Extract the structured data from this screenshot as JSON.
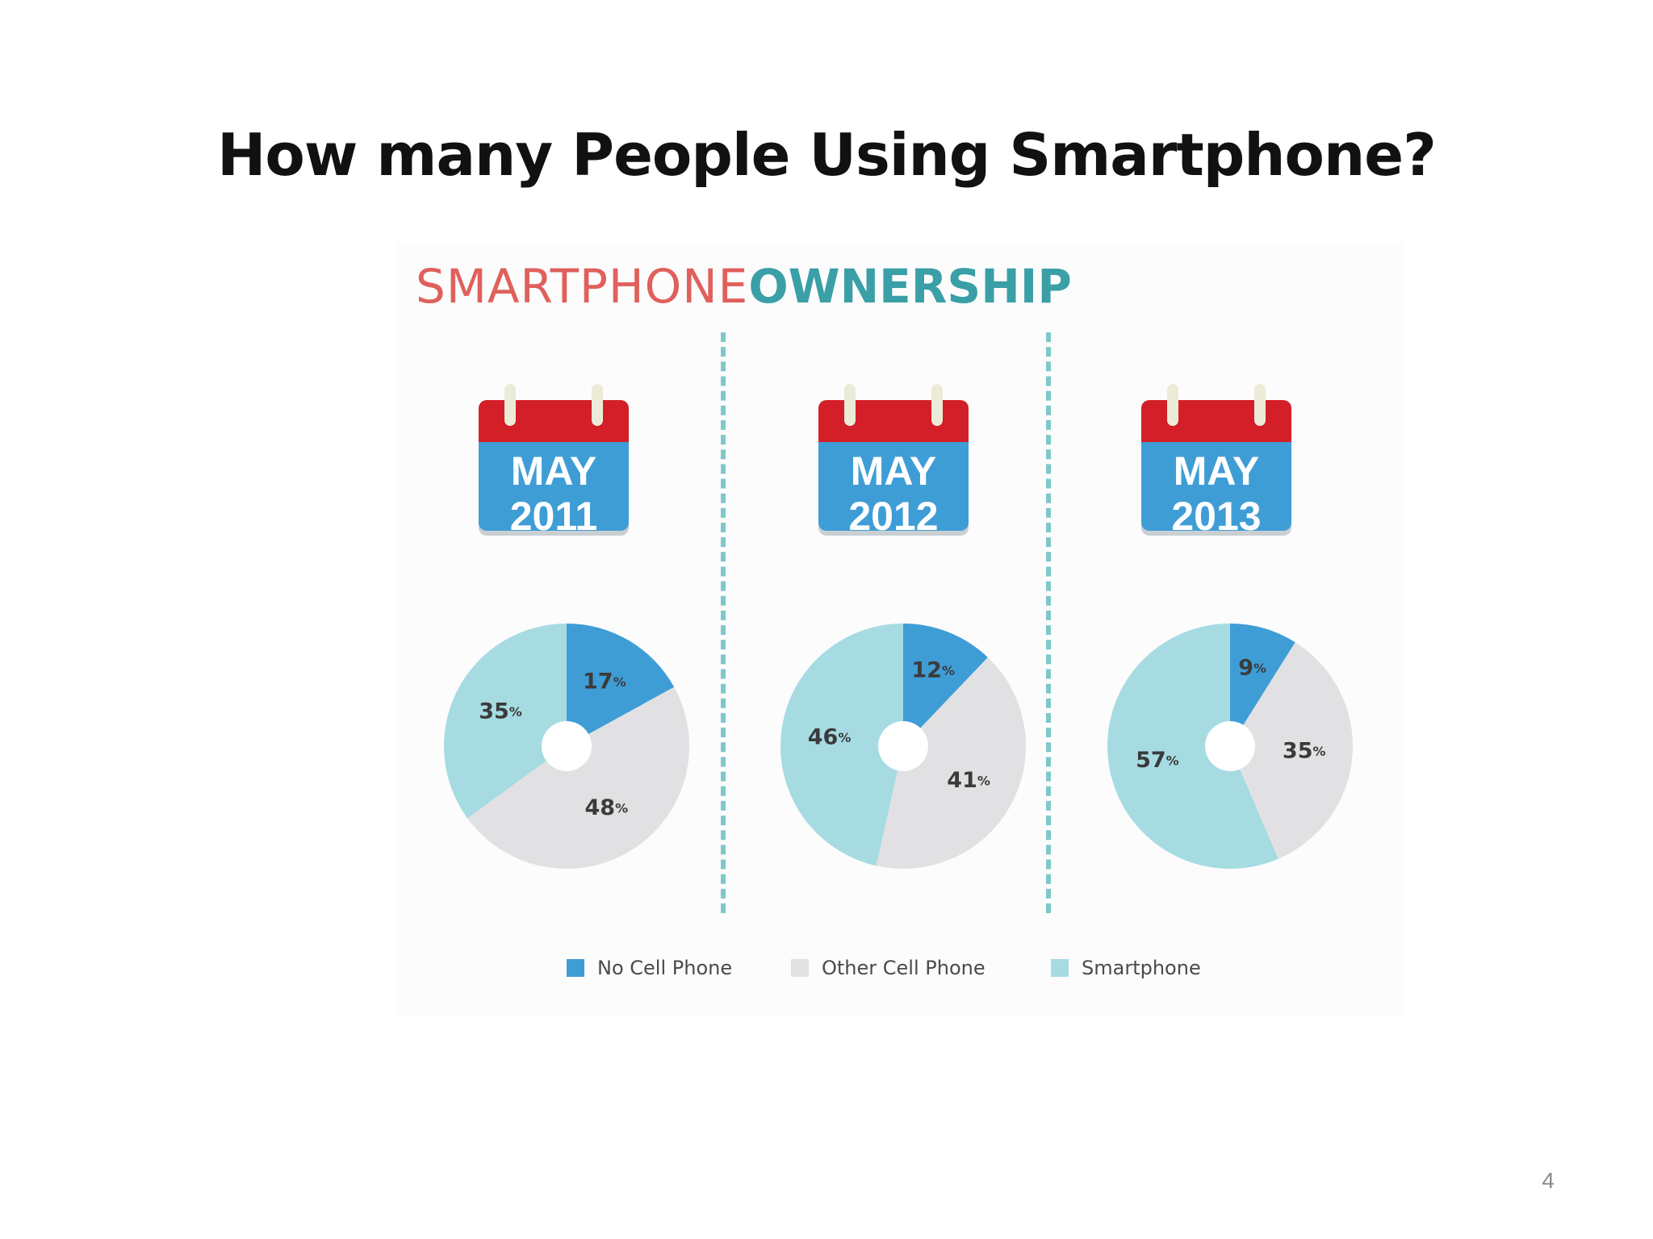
{
  "slide": {
    "title": "How many People Using Smartphone?",
    "page_number": "4"
  },
  "infographic": {
    "headline_light": "SMARTPHONE",
    "headline_bold": "OWNERSHIP",
    "colors": {
      "headline_light": "#e0605c",
      "headline_bold": "#3a9fa6",
      "calendar_top": "#d31f27",
      "calendar_body": "#3f9dd6",
      "divider": "#7fc8c9"
    },
    "calendars": [
      {
        "month": "MAY",
        "year": "2011"
      },
      {
        "month": "MAY",
        "year": "2012"
      },
      {
        "month": "MAY",
        "year": "2013"
      }
    ]
  },
  "chart_data": {
    "type": "pie",
    "variant": "donut",
    "title": "SMARTPHONEOWNERSHIP",
    "categories": [
      "No Cell Phone",
      "Other Cell Phone",
      "Smartphone"
    ],
    "colors": [
      "#3f9dd6",
      "#e1e1e3",
      "#a6dbe2"
    ],
    "percent_suffix": "%",
    "legend_position": "bottom",
    "charts": [
      {
        "label": "MAY 2011",
        "values": [
          17,
          48,
          35
        ]
      },
      {
        "label": "MAY 2012",
        "values": [
          12,
          41,
          46
        ]
      },
      {
        "label": "MAY 2013",
        "values": [
          9,
          35,
          57
        ]
      }
    ]
  }
}
